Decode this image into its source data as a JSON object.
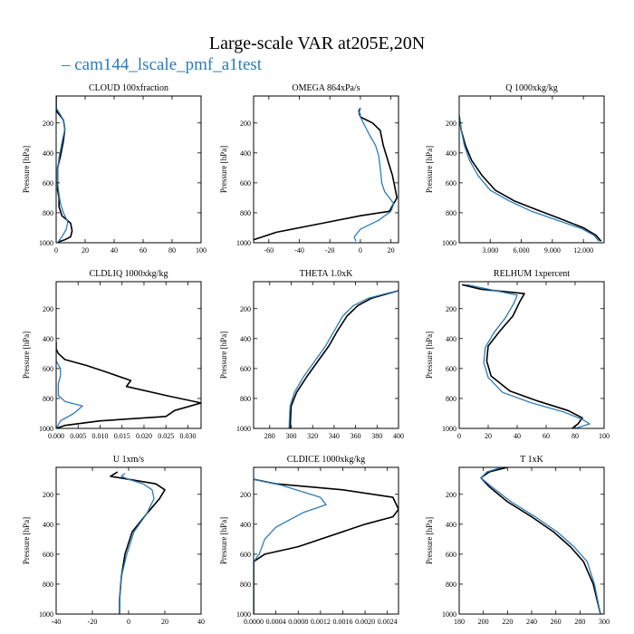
{
  "figure": {
    "title": "Large-scale VAR at205E,20N",
    "legend_label": "cam144_lscale_pmf_a1test",
    "legend_color": "#2b7bb9",
    "ref_color": "#000000"
  },
  "chart_data": [
    {
      "type": "line",
      "title": "CLOUD  100xfraction",
      "ylabel": "Pressure [hPa]",
      "xlim": [
        0,
        100
      ],
      "ylim": [
        1000,
        20
      ],
      "xticks": [
        0,
        20,
        40,
        60,
        80,
        100
      ],
      "xtick_labels": [
        "0",
        "20",
        "40",
        "60",
        "80",
        "100"
      ],
      "yticks": [
        200,
        400,
        600,
        800,
        1000
      ],
      "ytick_labels": [
        "200",
        "400",
        "600",
        "800",
        "1000"
      ],
      "series": [
        {
          "name": "ref",
          "x": [
            0,
            0,
            1,
            5,
            6,
            5,
            3,
            1,
            1,
            1,
            2,
            2,
            4,
            10,
            11,
            10,
            6,
            3,
            1
          ],
          "y": [
            20,
            100,
            130,
            180,
            240,
            320,
            420,
            500,
            580,
            650,
            700,
            760,
            820,
            870,
            920,
            960,
            980,
            990,
            1000
          ]
        },
        {
          "name": "cam144_lscale_pmf_a1test",
          "x": [
            0,
            0,
            2,
            5,
            6,
            4,
            2,
            1,
            1,
            2,
            3,
            5,
            8,
            7,
            4,
            2,
            1
          ],
          "y": [
            20,
            100,
            130,
            180,
            240,
            330,
            430,
            520,
            600,
            680,
            740,
            800,
            860,
            910,
            960,
            985,
            1000
          ]
        }
      ]
    },
    {
      "type": "line",
      "title": "OMEGA  864xPa/s",
      "ylabel": "Pressure [hPa]",
      "xlim": [
        -70,
        25
      ],
      "ylim": [
        1000,
        20
      ],
      "xticks": [
        -60,
        -40,
        -20,
        0,
        20
      ],
      "xtick_labels": [
        "-60",
        "-40",
        "-20",
        "0",
        "20"
      ],
      "yticks": [
        200,
        400,
        600,
        800,
        1000
      ],
      "ytick_labels": [
        "200",
        "400",
        "600",
        "800",
        "1000"
      ],
      "series": [
        {
          "name": "ref",
          "x": [
            0,
            -1,
            0,
            8,
            13,
            15,
            18,
            21,
            24,
            19,
            0,
            -25,
            -55,
            -70
          ],
          "y": [
            100,
            120,
            160,
            200,
            250,
            350,
            450,
            550,
            700,
            790,
            820,
            870,
            930,
            980
          ]
        },
        {
          "name": "cam144_lscale_pmf_a1test",
          "x": [
            0,
            -1,
            1,
            3,
            6,
            10,
            12,
            13,
            14,
            16,
            19,
            22,
            20,
            12,
            0,
            -4,
            -3
          ],
          "y": [
            100,
            140,
            180,
            220,
            280,
            350,
            420,
            500,
            600,
            660,
            700,
            740,
            790,
            850,
            910,
            960,
            990
          ]
        }
      ]
    },
    {
      "type": "line",
      "title": "Q  1000xkg/kg",
      "ylabel": "Pressure [hPa]",
      "xlim": [
        0,
        14
      ],
      "ylim": [
        1000,
        20
      ],
      "xticks": [
        3,
        6,
        9,
        12
      ],
      "xtick_labels": [
        "3.000",
        "6.000",
        "9.000",
        "12.000"
      ],
      "yticks": [
        200,
        400,
        600,
        800,
        1000
      ],
      "ytick_labels": [
        "200",
        "400",
        "600",
        "800",
        "1000"
      ],
      "series": [
        {
          "name": "ref",
          "x": [
            0,
            0.2,
            0.6,
            1.2,
            2.2,
            3.5,
            5.3,
            7.5,
            9.8,
            12.0,
            13.2,
            13.7
          ],
          "y": [
            150,
            250,
            350,
            450,
            550,
            650,
            720,
            780,
            840,
            900,
            950,
            990
          ]
        },
        {
          "name": "cam144_lscale_pmf_a1test",
          "x": [
            0,
            0.2,
            0.5,
            1.0,
            1.8,
            3.0,
            4.8,
            7.0,
            9.5,
            11.8,
            13.0,
            13.5
          ],
          "y": [
            150,
            250,
            350,
            450,
            550,
            650,
            720,
            790,
            850,
            905,
            950,
            990
          ]
        }
      ]
    },
    {
      "type": "line",
      "title": "CLDLIQ  1000xkg/kg",
      "ylabel": "Pressure [hPa]",
      "xlim": [
        0,
        0.033
      ],
      "ylim": [
        1000,
        20
      ],
      "xticks": [
        0,
        0.005,
        0.01,
        0.015,
        0.02,
        0.025,
        0.03
      ],
      "xtick_labels": [
        "0.000",
        "0.005",
        "0.010",
        "0.015",
        "0.020",
        "0.025",
        "0.030"
      ],
      "yticks": [
        200,
        400,
        600,
        800,
        1000
      ],
      "ytick_labels": [
        "200",
        "400",
        "600",
        "800",
        "1000"
      ],
      "series": [
        {
          "name": "ref",
          "x": [
            0,
            0,
            0.0005,
            0.002,
            0.007,
            0.012,
            0.017,
            0.016,
            0.025,
            0.033,
            0.027,
            0.025,
            0.01,
            0.002,
            0
          ],
          "y": [
            420,
            470,
            500,
            540,
            580,
            630,
            680,
            720,
            780,
            830,
            880,
            920,
            950,
            980,
            1000
          ]
        },
        {
          "name": "cam144_lscale_pmf_a1test",
          "x": [
            0,
            0,
            0.001,
            0.001,
            0.0005,
            0.0005,
            0.002,
            0.006,
            0.004,
            0.001,
            0
          ],
          "y": [
            450,
            550,
            600,
            650,
            700,
            780,
            820,
            850,
            900,
            950,
            1000
          ]
        }
      ]
    },
    {
      "type": "line",
      "title": "THETA  1.0xK",
      "ylabel": "Pressure [hPa]",
      "xlim": [
        265,
        400
      ],
      "ylim": [
        1000,
        20
      ],
      "xticks": [
        280,
        300,
        320,
        340,
        360,
        380,
        400
      ],
      "xtick_labels": [
        "280",
        "300",
        "320",
        "340",
        "360",
        "380",
        "400"
      ],
      "yticks": [
        200,
        400,
        600,
        800,
        1000
      ],
      "ytick_labels": [
        "200",
        "400",
        "600",
        "800",
        "1000"
      ],
      "series": [
        {
          "name": "ref",
          "x": [
            400,
            390,
            375,
            362,
            352,
            343,
            335,
            325,
            315,
            305,
            300,
            299
          ],
          "y": [
            80,
            100,
            130,
            180,
            250,
            350,
            450,
            550,
            650,
            760,
            850,
            1000
          ]
        },
        {
          "name": "cam144_lscale_pmf_a1test",
          "x": [
            400,
            388,
            372,
            358,
            348,
            340,
            332,
            322,
            312,
            303,
            299,
            298
          ],
          "y": [
            80,
            100,
            130,
            180,
            250,
            350,
            450,
            550,
            650,
            760,
            850,
            1000
          ]
        }
      ]
    },
    {
      "type": "line",
      "title": "RELHUM  1xpercent",
      "ylabel": "Pressure [hPa]",
      "xlim": [
        0,
        100
      ],
      "ylim": [
        1000,
        20
      ],
      "xticks": [
        0,
        20,
        40,
        60,
        80,
        100
      ],
      "xtick_labels": [
        "0",
        "20",
        "40",
        "60",
        "80",
        "100"
      ],
      "yticks": [
        200,
        400,
        600,
        800,
        1000
      ],
      "ytick_labels": [
        "200",
        "400",
        "600",
        "800",
        "1000"
      ],
      "series": [
        {
          "name": "ref",
          "x": [
            2,
            15,
            45,
            42,
            37,
            28,
            20,
            19,
            22,
            35,
            55,
            75,
            85,
            82,
            78
          ],
          "y": [
            40,
            70,
            100,
            150,
            250,
            350,
            450,
            550,
            650,
            750,
            820,
            880,
            930,
            970,
            1000
          ]
        },
        {
          "name": "cam144_lscale_pmf_a1test",
          "x": [
            5,
            20,
            40,
            38,
            32,
            24,
            18,
            17,
            20,
            30,
            50,
            72,
            85,
            90,
            80
          ],
          "y": [
            40,
            70,
            110,
            160,
            260,
            360,
            460,
            560,
            660,
            760,
            830,
            890,
            940,
            970,
            1000
          ]
        }
      ]
    },
    {
      "type": "line",
      "title": "U  1xm/s",
      "ylabel": "Pressure [hPa]",
      "xlim": [
        -40,
        40
      ],
      "ylim": [
        1000,
        20
      ],
      "xticks": [
        -40,
        -20,
        0,
        20,
        40
      ],
      "xtick_labels": [
        "-40",
        "-20",
        "0",
        "20",
        "40"
      ],
      "yticks": [
        200,
        400,
        600,
        800,
        1000
      ],
      "ytick_labels": [
        "200",
        "400",
        "600",
        "800",
        "1000"
      ],
      "series": [
        {
          "name": "ref",
          "x": [
            -6,
            -10,
            0,
            15,
            20,
            17,
            10,
            2,
            -2,
            -4,
            -5,
            -5
          ],
          "y": [
            50,
            80,
            100,
            130,
            170,
            230,
            330,
            450,
            600,
            750,
            900,
            1000
          ]
        },
        {
          "name": "cam144_lscale_pmf_a1test",
          "x": [
            -2,
            -4,
            0,
            8,
            13,
            14,
            10,
            3,
            -1,
            -4,
            -5,
            -5
          ],
          "y": [
            60,
            80,
            100,
            130,
            170,
            230,
            330,
            450,
            600,
            750,
            900,
            1000
          ]
        }
      ]
    },
    {
      "type": "line",
      "title": "CLDICE  1000xkg/kg",
      "ylabel": "Pressure [hPa]",
      "xlim": [
        0,
        0.0026
      ],
      "ylim": [
        1000,
        20
      ],
      "xticks": [
        0,
        0.0004,
        0.0008,
        0.0012,
        0.0016,
        0.002,
        0.0024
      ],
      "xtick_labels": [
        "0.0000",
        "0.0004",
        "0.0008",
        "0.0012",
        "0.0016",
        "0.0020",
        "0.0024"
      ],
      "yticks": [
        200,
        400,
        600,
        800,
        1000
      ],
      "ytick_labels": [
        "200",
        "400",
        "600",
        "800",
        "1000"
      ],
      "series": [
        {
          "name": "ref",
          "x": [
            0,
            0.0004,
            0.0016,
            0.0025,
            0.0026,
            0.0025,
            0.002,
            0.0008,
            0.0002,
            0,
            0
          ],
          "y": [
            100,
            130,
            170,
            220,
            300,
            350,
            400,
            550,
            600,
            650,
            1000
          ]
        },
        {
          "name": "cam144_lscale_pmf_a1test",
          "x": [
            0,
            0.0005,
            0.0012,
            0.0013,
            0.0009,
            0.0004,
            0.0002,
            0.0001,
            0,
            0
          ],
          "y": [
            100,
            140,
            220,
            270,
            320,
            420,
            500,
            600,
            650,
            1000
          ]
        }
      ]
    },
    {
      "type": "line",
      "title": "T  1xK",
      "ylabel": "Pressure [hPa]",
      "xlim": [
        180,
        300
      ],
      "ylim": [
        1000,
        20
      ],
      "xticks": [
        180,
        200,
        220,
        240,
        260,
        280,
        300
      ],
      "xtick_labels": [
        "180",
        "200",
        "220",
        "240",
        "260",
        "280",
        "300"
      ],
      "yticks": [
        200,
        400,
        600,
        800,
        1000
      ],
      "ytick_labels": [
        "200",
        "400",
        "600",
        "800",
        "1000"
      ],
      "series": [
        {
          "name": "ref",
          "x": [
            220,
            205,
            198,
            205,
            220,
            240,
            258,
            272,
            283,
            291,
            297
          ],
          "y": [
            20,
            50,
            90,
            150,
            250,
            350,
            450,
            550,
            650,
            800,
            1000
          ]
        },
        {
          "name": "cam144_lscale_pmf_a1test",
          "x": [
            215,
            203,
            198,
            207,
            223,
            243,
            261,
            275,
            286,
            292,
            297
          ],
          "y": [
            20,
            50,
            90,
            150,
            250,
            350,
            450,
            550,
            650,
            800,
            1000
          ]
        }
      ]
    }
  ]
}
